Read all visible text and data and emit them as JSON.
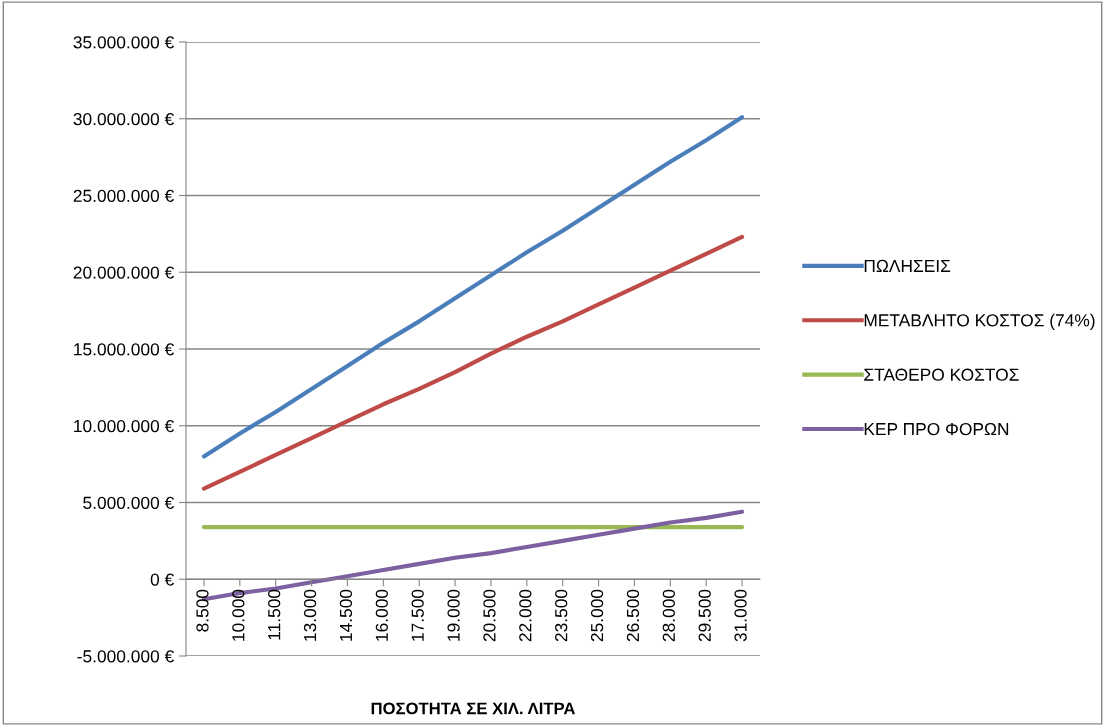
{
  "chart_data": {
    "type": "line",
    "xlabel": "ΠΟΣΟΤΗΤΑ ΣΕ ΧΙΛ. ΛΙΤΡΑ",
    "categories": [
      "8.500",
      "10.000",
      "11.500",
      "13.000",
      "14.500",
      "16.000",
      "17.500",
      "19.000",
      "20.500",
      "22.000",
      "23.500",
      "25.000",
      "26.500",
      "28.000",
      "29.500",
      "31.000"
    ],
    "series": [
      {
        "name": "ΠΩΛΗΣΕΙΣ",
        "color": "#4a7ebb",
        "values": [
          8000000,
          9500000,
          10900000,
          12400000,
          13900000,
          15400000,
          16800000,
          18300000,
          19800000,
          21300000,
          22700000,
          24200000,
          25700000,
          27200000,
          28600000,
          30100000
        ]
      },
      {
        "name": "ΜΕΤΑΒΛΗΤΟ ΚΟΣΤΟΣ (74%)",
        "color": "#be4b48",
        "values": [
          5900000,
          7000000,
          8100000,
          9200000,
          10300000,
          11400000,
          12400000,
          13500000,
          14700000,
          15800000,
          16800000,
          17900000,
          19000000,
          20100000,
          21200000,
          22300000
        ]
      },
      {
        "name": "ΣΤΑΘΕΡΟ ΚΟΣΤΟΣ",
        "color": "#98b954",
        "values": [
          3400000,
          3400000,
          3400000,
          3400000,
          3400000,
          3400000,
          3400000,
          3400000,
          3400000,
          3400000,
          3400000,
          3400000,
          3400000,
          3400000,
          3400000,
          3400000
        ]
      },
      {
        "name": "ΚΕΡ ΠΡΟ ΦΟΡΩΝ",
        "color": "#7d60a0",
        "values": [
          -1300000,
          -900000,
          -600000,
          -200000,
          200000,
          600000,
          1000000,
          1400000,
          1700000,
          2100000,
          2500000,
          2900000,
          3300000,
          3700000,
          4000000,
          4400000
        ]
      }
    ],
    "ylim": [
      -5000000,
      35000000
    ],
    "yticks": [
      {
        "value": -5000000,
        "label": "-5.000.000 €"
      },
      {
        "value": 0,
        "label": "0 €"
      },
      {
        "value": 5000000,
        "label": "5.000.000 €"
      },
      {
        "value": 10000000,
        "label": "10.000.000 €"
      },
      {
        "value": 15000000,
        "label": "15.000.000 €"
      },
      {
        "value": 20000000,
        "label": "20.000.000 €"
      },
      {
        "value": 25000000,
        "label": "25.000.000 €"
      },
      {
        "value": 30000000,
        "label": "30.000.000 €"
      },
      {
        "value": 35000000,
        "label": "35.000.000 €"
      }
    ],
    "grid": "y",
    "legend": "right",
    "marker": "none",
    "line_style": "solid"
  }
}
